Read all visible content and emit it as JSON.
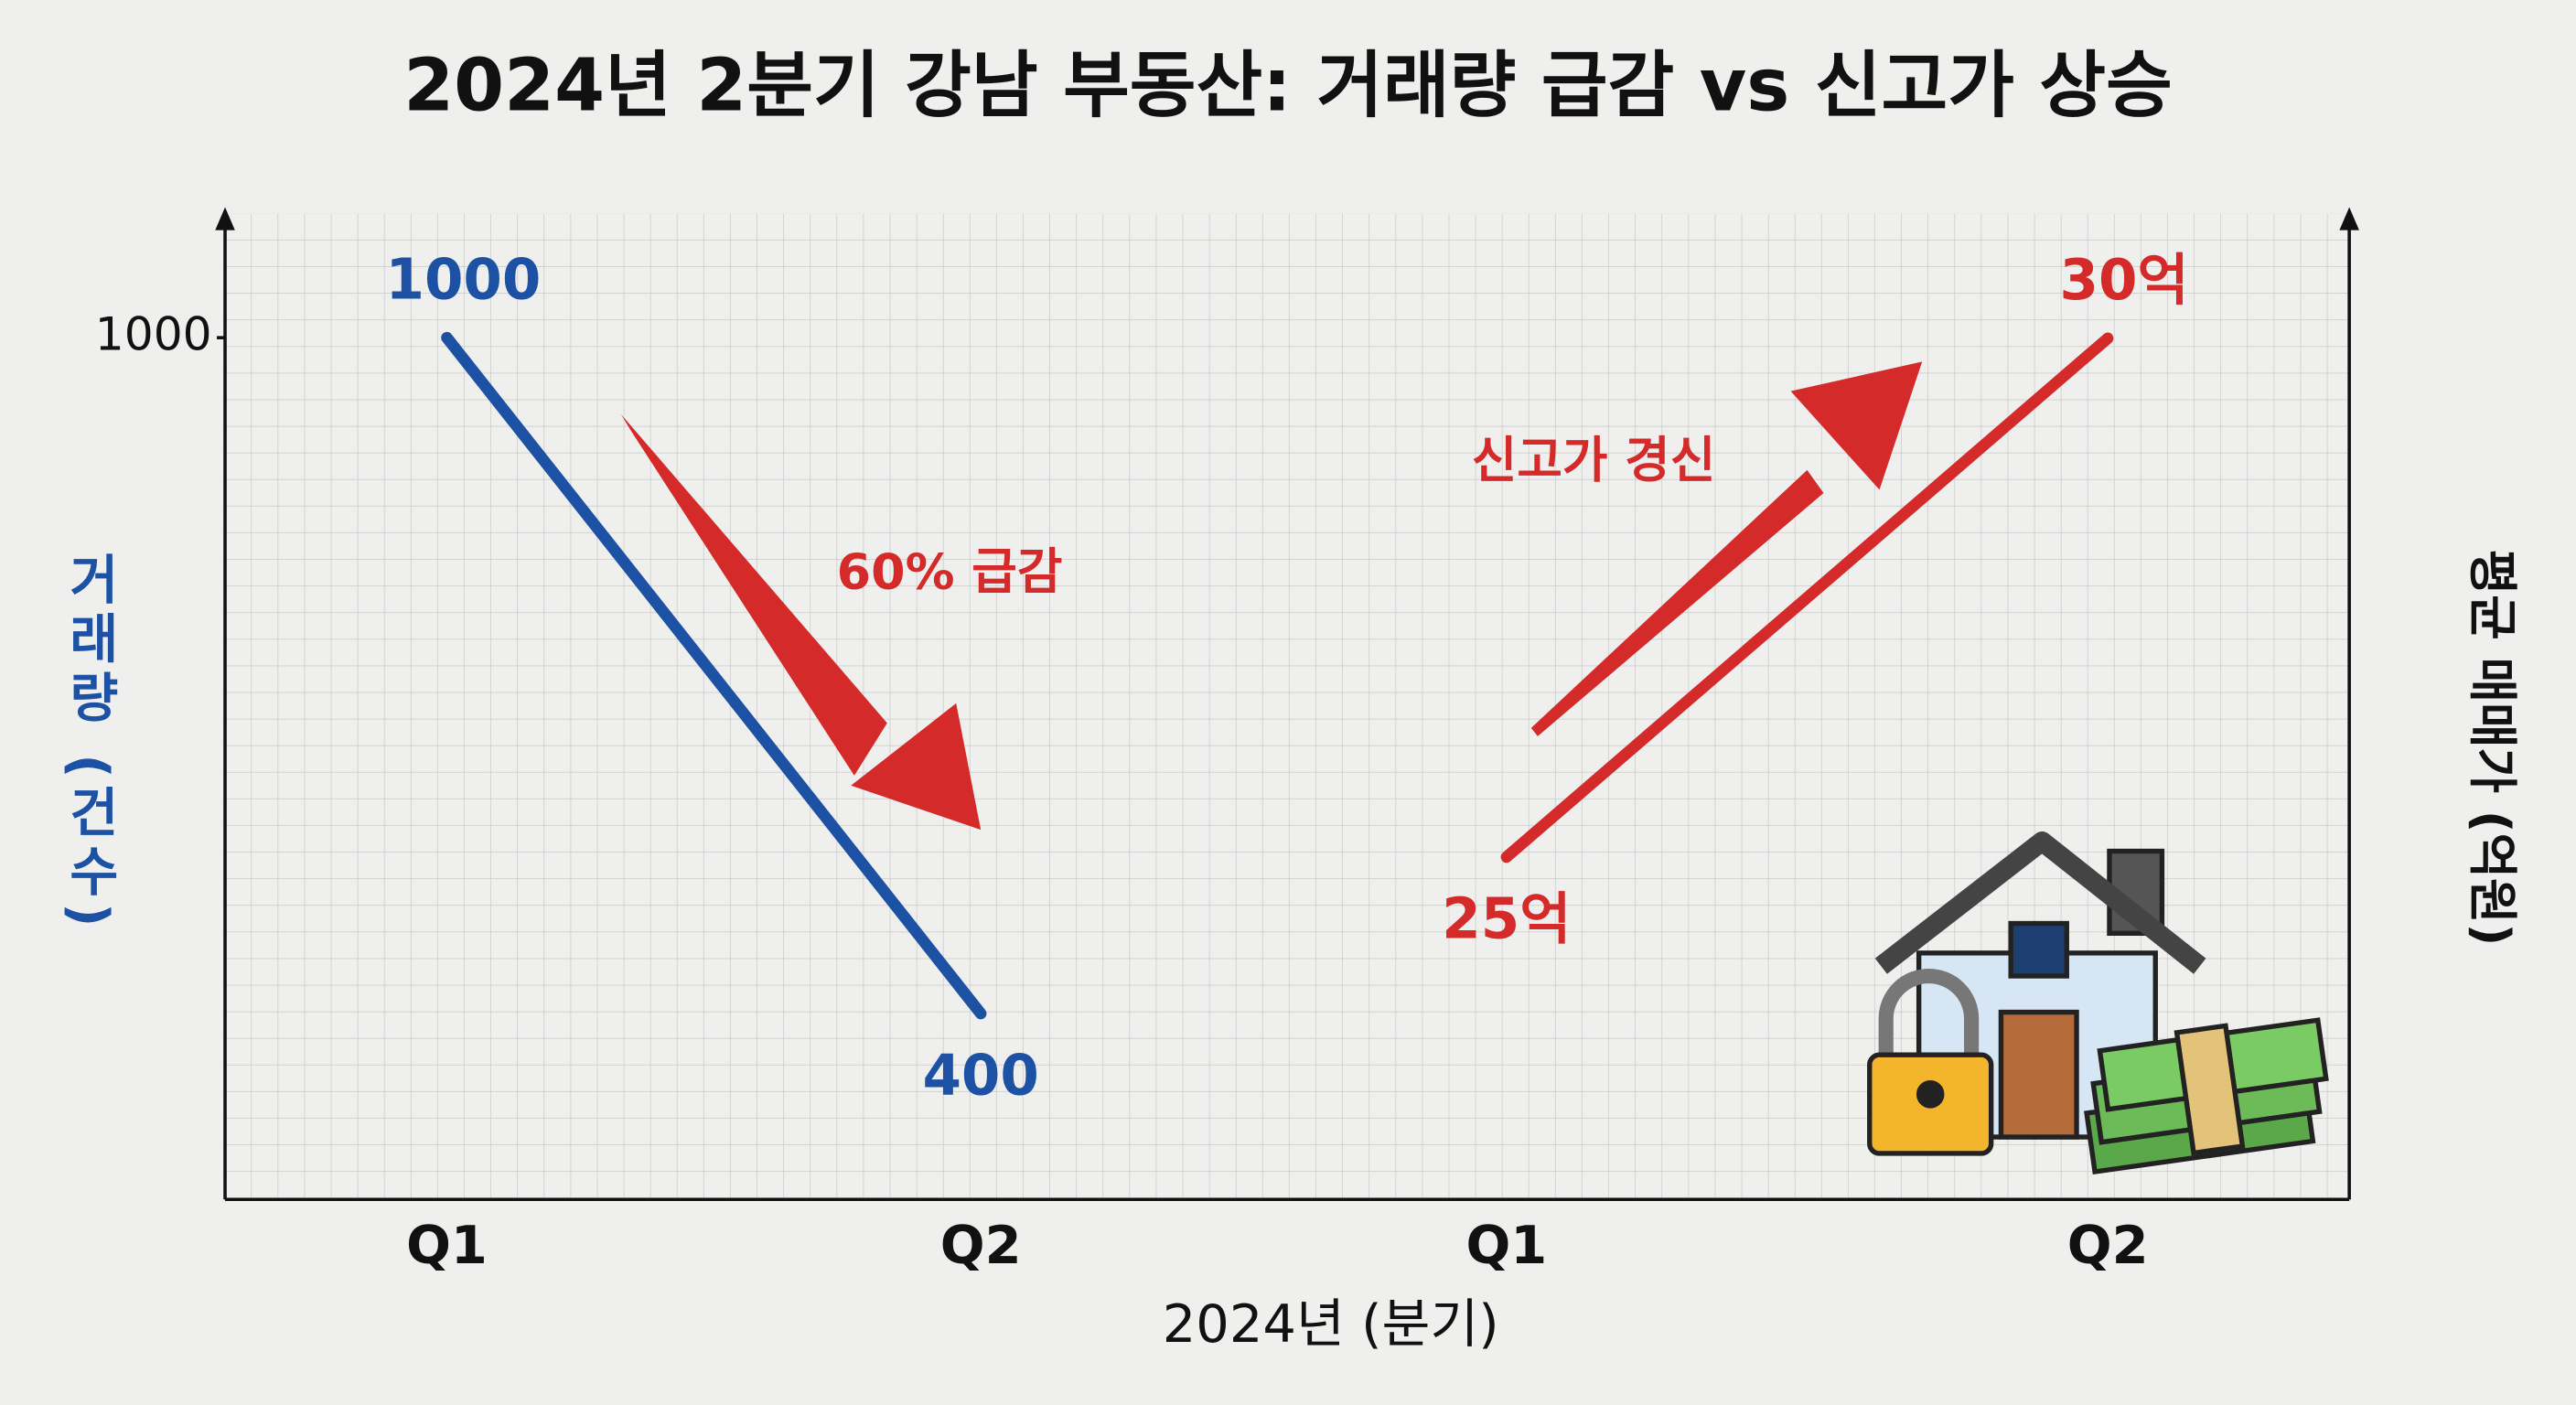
{
  "chart_data": {
    "type": "line",
    "title": "2024년 2분기 강남 부동산: 거래량 급감 vs 신고가 상승",
    "categories": [
      "Q1",
      "Q2",
      "Q1",
      "Q2"
    ],
    "x_label": "2024년 (분기)",
    "y_label": "거래량 (건수)",
    "y2_label": "평균 매매가 (억원)",
    "ylim": [
      235,
      1110
    ],
    "yticks": [
      1000
    ],
    "y2lim": [
      21.7,
      31.2
    ],
    "grid": true,
    "series": [
      {
        "color": "#1c51a3",
        "values": [
          1000,
          400,
          null,
          null
        ]
      },
      {
        "color": "#d42a2a",
        "axis": "y2",
        "values": [
          null,
          null,
          25,
          30
        ],
        "value_labels": [
          null,
          null,
          "25억",
          "30억"
        ]
      }
    ],
    "annotations": [
      "60% 급감",
      "신고가 경신"
    ]
  }
}
